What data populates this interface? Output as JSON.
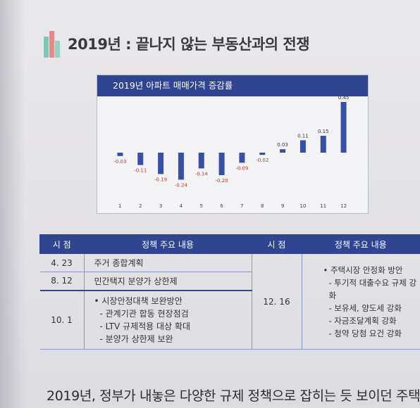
{
  "heading": {
    "title": "2019년 : 끝나지 않는 부동산과의 전쟁",
    "icon": "book-stack-icon"
  },
  "chart_data": {
    "type": "bar",
    "title": "2019년 아파트 매매가격 증감률",
    "categories": [
      "1",
      "2",
      "3",
      "4",
      "5",
      "6",
      "7",
      "8",
      "9",
      "10",
      "11",
      "12"
    ],
    "values": [
      -0.03,
      -0.11,
      -0.19,
      -0.24,
      -0.14,
      -0.2,
      -0.09,
      -0.02,
      0.03,
      0.11,
      0.15,
      0.45
    ],
    "value_labels": [
      "-0.03",
      "-0.11",
      "-0.19",
      "-0.24",
      "-0.14",
      "-0.20",
      "-0.09",
      "-0.02",
      "0.03",
      "0.11",
      "0.15",
      "0.45"
    ],
    "ylim": [
      -0.3,
      0.5
    ],
    "grid": false,
    "colors": {
      "bar": "#3550a4",
      "negative_label": "#c0392b",
      "positive_label": "#333333",
      "header": "#2f4591"
    }
  },
  "table": {
    "headers": {
      "date": "시 점",
      "policy": "정책 주요 내용",
      "date2": "시 점",
      "policy2": "정책 주요 내용"
    },
    "rows": [
      {
        "date": "4. 23",
        "policy": "주거 종합계획"
      },
      {
        "date": "8. 12",
        "policy": "민간택지 분양가 상한제"
      },
      {
        "date": "10. 1",
        "policy": "• 시장안정대책 보완방안",
        "subs": [
          "- 관계기관 합동 현장점검",
          "- LTV 규제적용 대상 확대",
          "- 분양가 상한제 보완"
        ]
      }
    ],
    "right": {
      "date": "12. 16",
      "lines": [
        "• 주택시장 안정화 방안",
        "- 투기적 대출수요 규제 강화",
        "- 보유세, 양도세 강화",
        "- 자금조달계획 강화",
        "- 청약 당첨 요건 강화"
      ]
    }
  },
  "body_text": "2019년, 정부가 내놓은 다양한 규제 정책으로 잡히는 듯 보이던 주택"
}
